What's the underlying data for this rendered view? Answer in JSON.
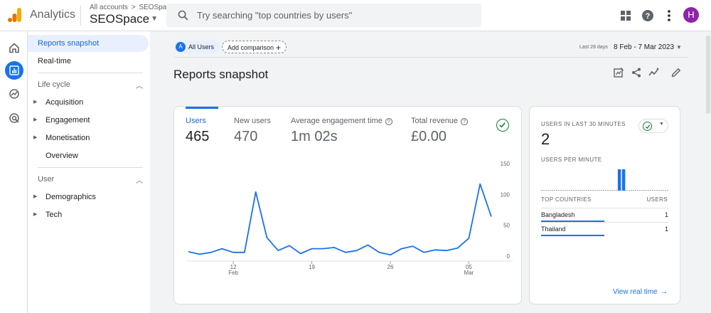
{
  "app": {
    "title": "Analytics"
  },
  "breadcrumb": {
    "root": "All accounts",
    "separator": ">",
    "account": "SEOSpace"
  },
  "property": {
    "name": "SEOSpace"
  },
  "search": {
    "placeholder": "Try searching \"top countries by users\""
  },
  "user": {
    "avatar_letter": "H"
  },
  "nav": {
    "top_items": [
      "Reports snapshot",
      "Real-time"
    ],
    "sections": [
      {
        "title": "Life cycle",
        "items": [
          "Acquisition",
          "Engagement",
          "Monetisation",
          "Overview"
        ]
      },
      {
        "title": "User",
        "items": [
          "Demographics",
          "Tech"
        ]
      }
    ]
  },
  "comparison": {
    "segment_letter": "A",
    "segment": "All Users",
    "add_label": "Add comparison"
  },
  "date_range": {
    "label": "Last 28 days",
    "value": "8 Feb - 7 Mar 2023"
  },
  "page": {
    "title": "Reports snapshot"
  },
  "metrics": [
    {
      "label": "Users",
      "value": "465"
    },
    {
      "label": "New users",
      "value": "470"
    },
    {
      "label": "Average engagement time",
      "value": "1m 02s"
    },
    {
      "label": "Total revenue",
      "value": "£0.00"
    }
  ],
  "chart_data": {
    "type": "line",
    "title": "",
    "series": [
      {
        "name": "Users",
        "values": [
          7,
          3,
          6,
          12,
          6,
          6,
          104,
          30,
          9,
          17,
          4,
          12,
          12,
          14,
          6,
          9,
          18,
          6,
          2,
          12,
          16,
          6,
          10,
          9,
          13,
          29,
          117,
          64
        ]
      }
    ],
    "x_tick_labels": [
      {
        "day": "12",
        "month": "Feb",
        "index": 4
      },
      {
        "day": "19",
        "month": "",
        "index": 11
      },
      {
        "day": "26",
        "month": "",
        "index": 18
      },
      {
        "day": "05",
        "month": "Mar",
        "index": 25
      }
    ],
    "y_ticks": [
      0,
      50,
      100,
      150
    ],
    "ylim": [
      0,
      150
    ]
  },
  "realtime": {
    "heading": "USERS IN LAST 30 MINUTES",
    "count": "2",
    "per_minute_label": "USERS PER MINUTE",
    "per_minute_values": [
      0,
      0,
      0,
      0,
      0,
      0,
      0,
      0,
      0,
      0,
      0,
      0,
      0,
      0,
      0,
      0,
      0,
      0,
      1,
      1,
      0,
      0,
      0,
      0,
      0,
      0,
      0,
      0,
      0,
      0
    ],
    "table_headers": {
      "country": "TOP COUNTRIES",
      "users": "USERS"
    },
    "rows": [
      {
        "country": "Bangladesh",
        "users": "1"
      },
      {
        "country": "Thailand",
        "users": "1"
      }
    ],
    "link": "View real time"
  },
  "colors": {
    "accent": "#1a73e8",
    "success": "#188038",
    "logo_orange": "#f9ab00",
    "logo_dark": "#e37400"
  }
}
